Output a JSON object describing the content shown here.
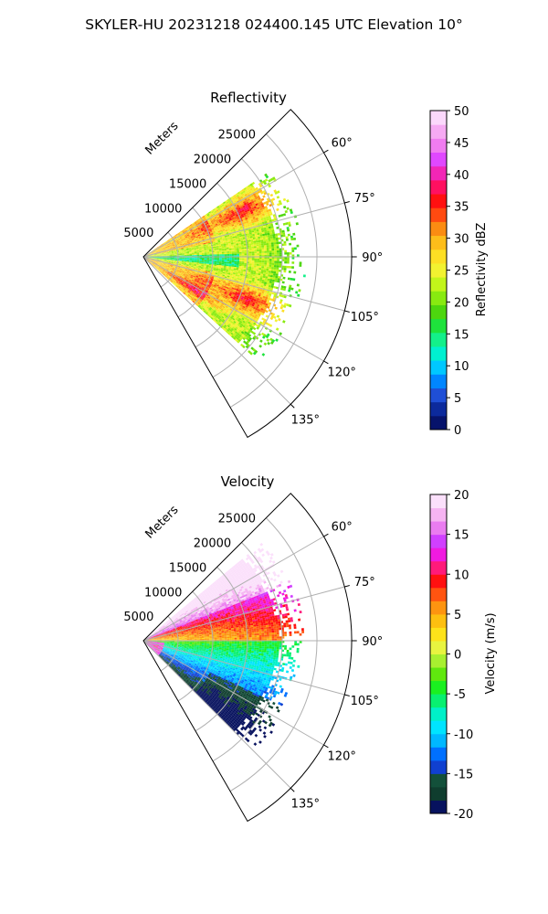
{
  "figure": {
    "suptitle": "SKYLER-HU  20231218  024400.145 UTC Elevation 10°"
  },
  "chart_data": [
    {
      "type": "heatmap",
      "title": "Reflectivity",
      "projection": "polar-sector",
      "radial_label": "Meters",
      "radial_ticks": [
        "5000",
        "10000",
        "15000",
        "20000",
        "25000"
      ],
      "radial_range": [
        0,
        30000
      ],
      "angle_range_deg": [
        45,
        150
      ],
      "angle_ticks": [
        "60°",
        "75°",
        "90°",
        "105°",
        "120°",
        "135°"
      ],
      "angle_tick_values": [
        60,
        75,
        90,
        105,
        120,
        135
      ],
      "grid": true,
      "colorbar": {
        "label": "Reflectivity dBZ",
        "range": [
          0,
          50
        ],
        "ticks": [
          "0",
          "5",
          "10",
          "15",
          "20",
          "25",
          "30",
          "35",
          "40",
          "45",
          "50"
        ],
        "colors": [
          "#06136b",
          "#0c2a9c",
          "#1f4fd6",
          "#0086ff",
          "#00c8ff",
          "#00f0d0",
          "#13f08a",
          "#1ee23c",
          "#4dd60e",
          "#88ea10",
          "#c2f51a",
          "#f2f230",
          "#fddf24",
          "#fdbd1a",
          "#fb8c12",
          "#ff4a10",
          "#ff1010",
          "#ff1060",
          "#f226b6",
          "#e048ff",
          "#f07cf0",
          "#f6aaf3",
          "#fbd8fb"
        ]
      },
      "cells_legend_note": ""
    },
    {
      "type": "heatmap",
      "title": "Velocity",
      "projection": "polar-sector",
      "radial_label": "Meters",
      "radial_ticks": [
        "5000",
        "10000",
        "15000",
        "20000",
        "25000"
      ],
      "radial_range": [
        0,
        30000
      ],
      "angle_range_deg": [
        45,
        150
      ],
      "angle_ticks": [
        "60°",
        "75°",
        "90°",
        "105°",
        "120°",
        "135°"
      ],
      "angle_tick_values": [
        60,
        75,
        90,
        105,
        120,
        135
      ],
      "grid": true,
      "colorbar": {
        "label": "Velocity (m/s)",
        "range": [
          -20,
          20
        ],
        "ticks": [
          "-20",
          "-15",
          "-10",
          "-5",
          "0",
          "5",
          "10",
          "15",
          "20"
        ],
        "colors": [
          "#07125e",
          "#0f3d2e",
          "#13503a",
          "#1040d0",
          "#0070ff",
          "#00b8ff",
          "#00e4ff",
          "#00f0c8",
          "#08f070",
          "#1af020",
          "#60e80e",
          "#a8f030",
          "#e8f440",
          "#fde21a",
          "#fdbf10",
          "#fd9410",
          "#ff5410",
          "#ff1010",
          "#ff1a7a",
          "#f01ae0",
          "#d040ff",
          "#ea7cf0",
          "#f6b4f2",
          "#fbe0fb"
        ]
      }
    }
  ]
}
